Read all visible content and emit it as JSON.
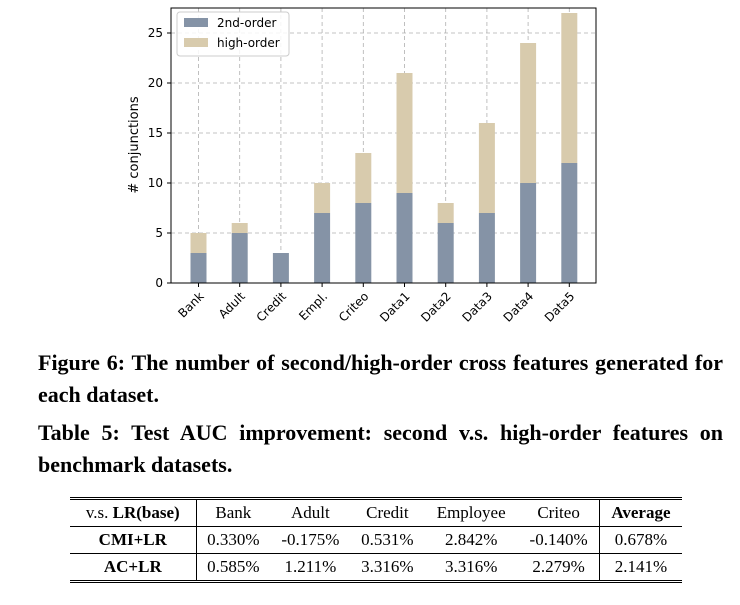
{
  "chart_data": {
    "type": "bar",
    "stacked": true,
    "categories": [
      "Bank",
      "Adult",
      "Credit",
      "Empl.",
      "Criteo",
      "Data1",
      "Data2",
      "Data3",
      "Data4",
      "Data5"
    ],
    "series": [
      {
        "name": "2nd-order",
        "color": "#8593a6",
        "values": [
          3,
          5,
          3,
          7,
          8,
          9,
          6,
          7,
          10,
          12
        ]
      },
      {
        "name": "high-order",
        "color": "#d8cbad",
        "values": [
          2,
          1,
          0,
          3,
          5,
          12,
          2,
          9,
          14,
          15
        ]
      }
    ],
    "ylabel": "# conjunctions",
    "ylim": [
      0,
      27.5
    ],
    "yticks": [
      0,
      5,
      10,
      15,
      20,
      25
    ],
    "grid": true,
    "legend": "top-left"
  },
  "figure_caption": "Figure 6: The number of second/high-order cross features generated for each dataset.",
  "table_caption": "Table 5: Test AUC improvement: second v.s. high-order fea­tures on benchmark datasets.",
  "table": {
    "header_prefix": "v.s. ",
    "header_base": "LR(base)",
    "columns": [
      "Bank",
      "Adult",
      "Credit",
      "Employee",
      "Criteo"
    ],
    "average_label": "Average",
    "rows": [
      {
        "name": "CMI+LR",
        "values": [
          "0.330%",
          "-0.175%",
          "0.531%",
          "2.842%",
          "-0.140%"
        ],
        "average": "0.678%"
      },
      {
        "name": "AC+LR",
        "values": [
          "0.585%",
          "1.211%",
          "3.316%",
          "3.316%",
          "2.279%"
        ],
        "average": "2.141%"
      }
    ]
  }
}
